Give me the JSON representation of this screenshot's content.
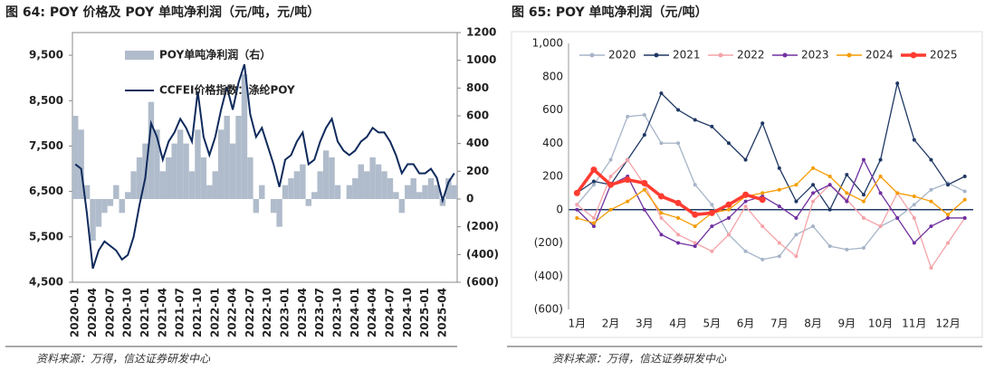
{
  "chart_data": [
    {
      "type": "bar_line",
      "title": "图 64:  POY 价格及 POY 单吨净利润（元/吨，元/吨）",
      "categories": [
        "2020-01",
        null,
        null,
        "2020-04",
        null,
        null,
        "2020-07",
        null,
        null,
        "2020-10",
        null,
        null,
        "2021-01",
        null,
        null,
        "2021-04",
        null,
        null,
        "2021-07",
        null,
        null,
        "2021-10",
        null,
        null,
        "2022-01",
        null,
        null,
        "2022-04",
        null,
        null,
        "2022-07",
        null,
        null,
        "2022-10",
        null,
        null,
        "2023-01",
        null,
        null,
        "2023-04",
        null,
        null,
        "2023-07",
        null,
        null,
        "2023-10",
        null,
        null,
        "2024-01",
        null,
        null,
        "2024-04",
        null,
        null,
        "2024-07",
        null,
        null,
        "2024-10",
        null,
        null,
        "2025-01",
        null,
        null,
        "2025-04",
        null,
        null
      ],
      "series": [
        {
          "name": "POY单吨净利润（右）",
          "color": "#b0bccb",
          "axis": "y2",
          "values": [
            600,
            500,
            100,
            -300,
            -200,
            -100,
            -50,
            100,
            -100,
            50,
            200,
            300,
            400,
            700,
            500,
            200,
            300,
            400,
            500,
            400,
            200,
            500,
            300,
            100,
            200,
            500,
            600,
            400,
            600,
            900,
            300,
            -100,
            100,
            0,
            -100,
            -200,
            100,
            150,
            200,
            250,
            -50,
            50,
            200,
            350,
            300,
            100,
            0,
            100,
            150,
            250,
            200,
            300,
            250,
            200,
            150,
            50,
            -100,
            100,
            150,
            50,
            100,
            150,
            100,
            -50,
            150,
            100
          ]
        },
        {
          "name": "CCFEI价格指数：涤纶POY",
          "color": "#0f2a5c",
          "values": [
            7100,
            7000,
            6000,
            4800,
            5200,
            5400,
            5300,
            5200,
            5000,
            5100,
            5500,
            6200,
            6800,
            8000,
            7700,
            7200,
            7600,
            7800,
            8100,
            7900,
            7600,
            8700,
            7700,
            7300,
            7700,
            8300,
            8800,
            8300,
            8900,
            9300,
            8200,
            7700,
            7900,
            7500,
            7100,
            6600,
            7200,
            7300,
            7600,
            7800,
            7100,
            7200,
            7600,
            7900,
            8100,
            7600,
            7400,
            7300,
            7400,
            7600,
            7700,
            7900,
            7800,
            7800,
            7600,
            7300,
            6900,
            7100,
            7100,
            6900,
            6900,
            7000,
            6800,
            6300,
            6700,
            6900
          ]
        }
      ],
      "ylim": [
        4500,
        10000
      ],
      "yticks": [
        {
          "value": 4500,
          "label": "4,500"
        },
        {
          "value": 5500,
          "label": "5,500"
        },
        {
          "value": 6500,
          "label": "6,500"
        },
        {
          "value": 7500,
          "label": "7,500"
        },
        {
          "value": 8500,
          "label": "8,500"
        },
        {
          "value": 9500,
          "label": "9,500"
        }
      ],
      "y2lim": [
        -600,
        1200
      ],
      "y2ticks": [
        {
          "value": -600,
          "label": "(600)"
        },
        {
          "value": -400,
          "label": "(400)"
        },
        {
          "value": -200,
          "label": "(200)"
        },
        0,
        200,
        400,
        600,
        800,
        1000,
        1200
      ],
      "y2_negative_color": "#ff0000",
      "source": "资料来源：万得，信达证券研发中心"
    },
    {
      "type": "line",
      "title": "图 65:  POY 单吨净利润（元/吨）",
      "categories": [
        "1月",
        null,
        "2月",
        null,
        "3月",
        null,
        "4月",
        null,
        "5月",
        null,
        "6月",
        null,
        "7月",
        null,
        "8月",
        null,
        "9月",
        null,
        "10月",
        null,
        "11月",
        null,
        "12月",
        null
      ],
      "series": [
        {
          "name": "2020",
          "color": "#a6b4c8",
          "values": [
            30,
            150,
            300,
            560,
            570,
            400,
            400,
            150,
            30,
            -150,
            -250,
            -300,
            -280,
            -150,
            -100,
            -220,
            -240,
            -230,
            -100,
            -50,
            30,
            120,
            160,
            110
          ]
        },
        {
          "name": "2021",
          "color": "#1f3864",
          "values": [
            100,
            170,
            150,
            300,
            450,
            700,
            600,
            540,
            500,
            400,
            300,
            520,
            250,
            50,
            150,
            0,
            210,
            90,
            300,
            760,
            420,
            300,
            150,
            200
          ]
        },
        {
          "name": "2022",
          "color": "#f4a3a8",
          "values": [
            30,
            -50,
            200,
            300,
            150,
            -50,
            -150,
            -200,
            -250,
            -150,
            20,
            -100,
            -200,
            -280,
            50,
            150,
            60,
            -50,
            -100,
            100,
            -50,
            -350,
            -200,
            -50
          ]
        },
        {
          "name": "2023",
          "color": "#7030a0",
          "values": [
            0,
            -100,
            150,
            200,
            0,
            -150,
            -200,
            -220,
            -100,
            -50,
            50,
            80,
            20,
            -50,
            100,
            150,
            50,
            300,
            100,
            -50,
            -200,
            -100,
            -50,
            -50
          ]
        },
        {
          "name": "2024",
          "color": "#f59c00",
          "values": [
            -50,
            -80,
            0,
            50,
            120,
            -20,
            -50,
            -100,
            -20,
            0,
            80,
            100,
            120,
            150,
            250,
            200,
            100,
            50,
            200,
            100,
            80,
            50,
            -30,
            60
          ]
        },
        {
          "name": "2025",
          "color": "#ff3b30",
          "values": [
            100,
            240,
            150,
            180,
            160,
            80,
            40,
            -30,
            -20,
            30,
            90,
            60,
            null,
            null,
            null,
            null,
            null,
            null,
            null,
            null,
            null,
            null,
            null,
            null
          ]
        }
      ],
      "ylim": [
        -600,
        1000
      ],
      "yticks": [
        {
          "value": -600,
          "label": "(600)"
        },
        {
          "value": -400,
          "label": "(400)"
        },
        {
          "value": -200,
          "label": "(200)"
        },
        0,
        200,
        400,
        600,
        800,
        {
          "value": 1000,
          "label": "1,000"
        }
      ],
      "source": "资料来源：万得，信达证券研发中心"
    }
  ]
}
